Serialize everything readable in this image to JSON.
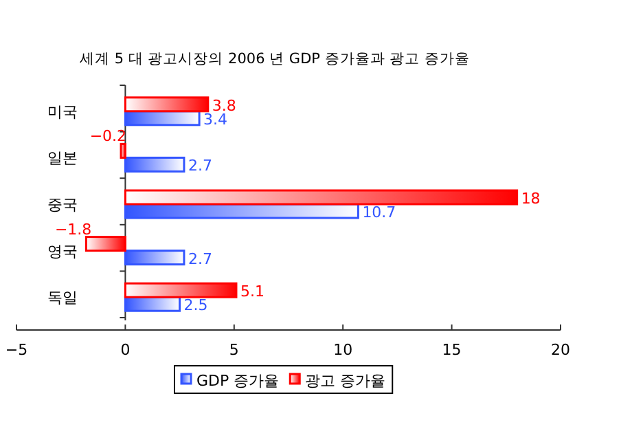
{
  "chart_data": {
    "type": "bar",
    "orientation": "horizontal",
    "title": "세계 5 대 광고시장의 2006 년 GDP 증가율과 광고 증가율",
    "categories": [
      "미국",
      "일본",
      "중국",
      "영국",
      "독일"
    ],
    "series": [
      {
        "name": "GDP 증가율",
        "color": "#3355ff",
        "values": [
          3.4,
          2.7,
          10.7,
          2.7,
          2.5
        ]
      },
      {
        "name": "광고 증가율",
        "color": "#ff0000",
        "values": [
          3.8,
          -0.2,
          18,
          -1.8,
          5.1
        ]
      }
    ],
    "xlim": [
      -5,
      20
    ],
    "xticks": [
      -5,
      0,
      5,
      10,
      15,
      20
    ],
    "data_labels": true,
    "legend": "bottom"
  }
}
